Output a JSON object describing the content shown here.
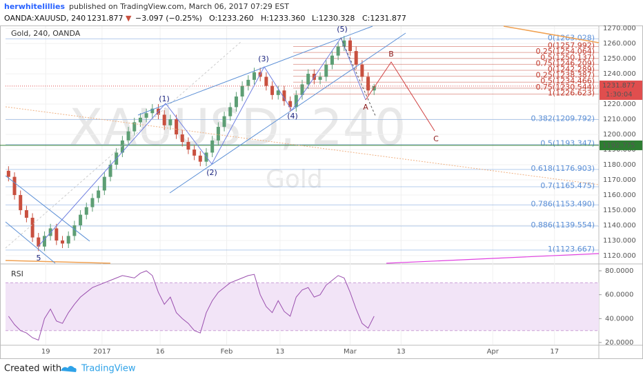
{
  "header": {
    "user": "herwhitelillies",
    "published": "published on TradingView.com, March 06, 2017 07:29 EST",
    "symbol": "OANDA:XAUUSD, 240",
    "last": "1231.877",
    "arrow": "▼",
    "change": "−3.097 (−0.25%)",
    "open": "O:1233.260",
    "high": "H:1233.360",
    "low": "L:1230.328",
    "close": "C:1231.877"
  },
  "footer": {
    "created": "Created with",
    "brand": "TradingView"
  },
  "chart_data": [
    {
      "type": "candlestick",
      "title": "Gold, 240, OANDA",
      "watermark": "XAUUSD, 240",
      "watermark_sub": "Gold",
      "x": [
        0,
        1,
        2,
        3,
        4,
        5,
        6,
        7,
        8,
        9,
        10,
        11,
        12,
        13,
        14,
        15,
        16,
        17,
        18,
        19,
        20,
        21,
        22,
        23,
        24,
        25,
        26,
        27,
        28,
        29,
        30,
        31,
        32,
        33,
        34,
        35,
        36,
        37,
        38,
        39,
        40,
        41,
        42,
        43,
        44,
        45,
        46,
        47,
        48,
        49,
        50,
        51,
        52,
        53,
        54,
        55,
        56,
        57,
        58,
        59,
        60,
        61
      ],
      "open": [
        1176,
        1172,
        1160,
        1150,
        1145,
        1132,
        1126,
        1133,
        1138,
        1130,
        1128,
        1133,
        1140,
        1147,
        1152,
        1158,
        1163,
        1172,
        1180,
        1188,
        1196,
        1202,
        1208,
        1211,
        1214,
        1217,
        1213,
        1206,
        1210,
        1200,
        1195,
        1190,
        1186,
        1182,
        1188,
        1196,
        1205,
        1212,
        1218,
        1225,
        1232,
        1236,
        1241,
        1238,
        1232,
        1226,
        1229,
        1222,
        1218,
        1226,
        1233,
        1240,
        1236,
        1238,
        1246,
        1252,
        1258,
        1262,
        1255,
        1246,
        1238,
        1229
      ],
      "high": [
        1179,
        1175,
        1163,
        1153,
        1148,
        1135,
        1136,
        1141,
        1141,
        1133,
        1136,
        1143,
        1150,
        1155,
        1161,
        1166,
        1175,
        1183,
        1191,
        1199,
        1205,
        1211,
        1214,
        1217,
        1220,
        1220,
        1216,
        1213,
        1213,
        1203,
        1198,
        1193,
        1189,
        1191,
        1199,
        1208,
        1215,
        1221,
        1228,
        1235,
        1239,
        1244,
        1244,
        1241,
        1235,
        1232,
        1232,
        1225,
        1229,
        1236,
        1243,
        1243,
        1241,
        1249,
        1255,
        1261,
        1265,
        1264,
        1258,
        1249,
        1241,
        1233.36
      ],
      "low": [
        1169,
        1157,
        1147,
        1142,
        1129,
        1123,
        1123,
        1130,
        1127,
        1125,
        1125,
        1130,
        1137,
        1144,
        1149,
        1155,
        1160,
        1169,
        1177,
        1185,
        1193,
        1199,
        1205,
        1208,
        1211,
        1210,
        1203,
        1203,
        1197,
        1192,
        1187,
        1183,
        1179,
        1179,
        1185,
        1193,
        1202,
        1209,
        1215,
        1222,
        1229,
        1233,
        1235,
        1229,
        1223,
        1223,
        1219,
        1215,
        1215,
        1223,
        1230,
        1233,
        1233,
        1235,
        1243,
        1249,
        1255,
        1252,
        1243,
        1235,
        1226,
        1226
      ],
      "close": [
        1172,
        1160,
        1150,
        1145,
        1132,
        1126,
        1133,
        1138,
        1130,
        1128,
        1133,
        1140,
        1147,
        1152,
        1158,
        1163,
        1172,
        1180,
        1188,
        1196,
        1202,
        1208,
        1211,
        1214,
        1217,
        1213,
        1206,
        1210,
        1200,
        1195,
        1190,
        1186,
        1182,
        1188,
        1196,
        1205,
        1212,
        1218,
        1225,
        1232,
        1236,
        1241,
        1238,
        1232,
        1226,
        1229,
        1222,
        1218,
        1226,
        1233,
        1240,
        1236,
        1238,
        1246,
        1252,
        1258,
        1262,
        1255,
        1246,
        1238,
        1229,
        1231.877
      ],
      "up_color": "#5d9e74",
      "down_color": "#c8503f",
      "xlim": [
        -0.5,
        98.5
      ],
      "xticks": [
        {
          "value": 6.2,
          "label": "19"
        },
        {
          "value": 15.6,
          "label": "2017"
        },
        {
          "value": 25.3,
          "label": "16"
        },
        {
          "value": 36.4,
          "label": "Feb"
        },
        {
          "value": 45.3,
          "label": "13"
        },
        {
          "value": 57.0,
          "label": "Mar"
        },
        {
          "value": 65.5,
          "label": "13"
        },
        {
          "value": 80.8,
          "label": "Apr"
        },
        {
          "value": 91.1,
          "label": "17"
        }
      ],
      "ylim": [
        1115,
        1271.4
      ],
      "yticks": [
        {
          "value": 1120,
          "label": "1120.000"
        },
        {
          "value": 1130,
          "label": "1130.000"
        },
        {
          "value": 1140,
          "label": "1140.000"
        },
        {
          "value": 1150,
          "label": "1150.000"
        },
        {
          "value": 1160,
          "label": "1160.000"
        },
        {
          "value": 1170,
          "label": "1170.000"
        },
        {
          "value": 1180,
          "label": "1180.000"
        },
        {
          "value": 1190,
          "label": "1190.000"
        },
        {
          "value": 1200,
          "label": "1200.000"
        },
        {
          "value": 1210,
          "label": "1210.000"
        },
        {
          "value": 1220,
          "label": "1220.000"
        },
        {
          "value": 1230,
          "label": "1230.000"
        },
        {
          "value": 1240,
          "label": "1240.000"
        },
        {
          "value": 1250,
          "label": "1250.000"
        },
        {
          "value": 1260,
          "label": "1260.000"
        },
        {
          "value": 1270,
          "label": "1270.000"
        }
      ],
      "grid": true,
      "fib_main": {
        "color": "#5b8fd6",
        "levels": [
          {
            "value": 1263.028,
            "label": "0(1263.028)"
          },
          {
            "value": 1209.792,
            "label": "0.382(1209.792)"
          },
          {
            "value": 1193.347,
            "label": "0.5(1193.347)"
          },
          {
            "value": 1176.903,
            "label": "0.618(1176.903)"
          },
          {
            "value": 1165.475,
            "label": "0.7(1165.475)"
          },
          {
            "value": 1153.49,
            "label": "0.786(1153.490)"
          },
          {
            "value": 1139.554,
            "label": "0.886(1139.554)"
          },
          {
            "value": 1123.667,
            "label": "1(1123.667)"
          }
        ]
      },
      "fib_wave": {
        "color": "#c0392b",
        "levels": [
          {
            "value": 1257.992,
            "label": "0(1257.992)"
          },
          {
            "value": 1254.064,
            "label": "0.25(1254.064)"
          },
          {
            "value": 1250.137,
            "label": "0.5(1250.137)"
          },
          {
            "value": 1246.209,
            "label": "0.75(1246.209)"
          },
          {
            "value": 1242.289,
            "label": "0(1242.289)"
          },
          {
            "value": 1238.387,
            "label": "0.25(1238.387)"
          },
          {
            "value": 1234.466,
            "label": "0.5(1234.466)"
          },
          {
            "value": 1230.544,
            "label": "0.75(1230.544)"
          },
          {
            "value": 1226.623,
            "label": "1(1226.623)"
          }
        ]
      },
      "hline": {
        "value": 1192.775,
        "label": "1192.775",
        "color": "#2e7d32"
      },
      "last_price": {
        "value": 1231.877,
        "label": "1231.877",
        "timer": "1:30:04",
        "color": "#e04e4e"
      },
      "waves": [
        "(1)",
        "(2)",
        "(3)",
        "(4)",
        "(5)",
        "5",
        "A",
        "B",
        "C"
      ]
    },
    {
      "type": "line",
      "title": "RSI",
      "x": [
        0,
        1,
        2,
        3,
        4,
        5,
        6,
        7,
        8,
        9,
        10,
        11,
        12,
        13,
        14,
        15,
        16,
        17,
        18,
        19,
        20,
        21,
        22,
        23,
        24,
        25,
        26,
        27,
        28,
        29,
        30,
        31,
        32,
        33,
        34,
        35,
        36,
        37,
        38,
        39,
        40,
        41,
        42,
        43,
        44,
        45,
        46,
        47,
        48,
        49,
        50,
        51,
        52,
        53,
        54,
        55,
        56,
        57,
        58,
        59,
        60,
        61
      ],
      "series": [
        {
          "name": "RSI",
          "color": "#9a4fae",
          "values": [
            42,
            35,
            30,
            28,
            24,
            22,
            40,
            48,
            38,
            36,
            45,
            52,
            58,
            62,
            66,
            68,
            70,
            72,
            74,
            76,
            75,
            74,
            78,
            80,
            76,
            62,
            52,
            58,
            45,
            40,
            36,
            30,
            28,
            45,
            55,
            62,
            66,
            70,
            72,
            74,
            76,
            77,
            60,
            50,
            45,
            55,
            46,
            42,
            58,
            64,
            66,
            58,
            60,
            68,
            72,
            76,
            74,
            62,
            48,
            36,
            32,
            42
          ]
        }
      ],
      "band": [
        30,
        70
      ],
      "band_color": "#f2e4f7",
      "xlim": [
        -0.5,
        98.5
      ],
      "ylim": [
        18.3,
        84.6
      ],
      "yticks": [
        {
          "value": 20,
          "label": "20.0000"
        },
        {
          "value": 40,
          "label": "40.0000"
        },
        {
          "value": 60,
          "label": "60.0000"
        },
        {
          "value": 80,
          "label": "80.0000"
        }
      ]
    }
  ]
}
